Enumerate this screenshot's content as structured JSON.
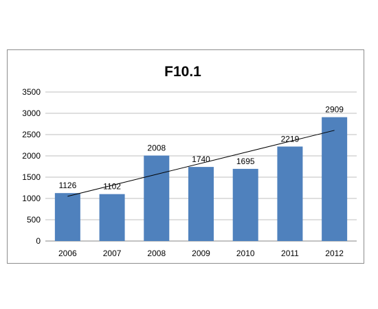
{
  "chart_data": {
    "type": "bar",
    "title": "F10.1",
    "categories": [
      "2006",
      "2007",
      "2008",
      "2009",
      "2010",
      "2011",
      "2012"
    ],
    "values": [
      1126,
      1102,
      2008,
      1740,
      1695,
      2219,
      2909
    ],
    "data_labels": [
      "1126",
      "1102",
      "2008",
      "1740",
      "1695",
      "2219",
      "2909"
    ],
    "ylim": [
      0,
      3500
    ],
    "yticks": [
      "0",
      "500",
      "1000",
      "1500",
      "2000",
      "2500",
      "3000",
      "3500"
    ],
    "trendline": {
      "type": "linear",
      "from": 1050,
      "to": 2600
    },
    "grid": true,
    "legend": "none",
    "bar_color": "#4f81bd",
    "trendline_color": "#000000",
    "gridline_color": "#bfbfbf"
  }
}
